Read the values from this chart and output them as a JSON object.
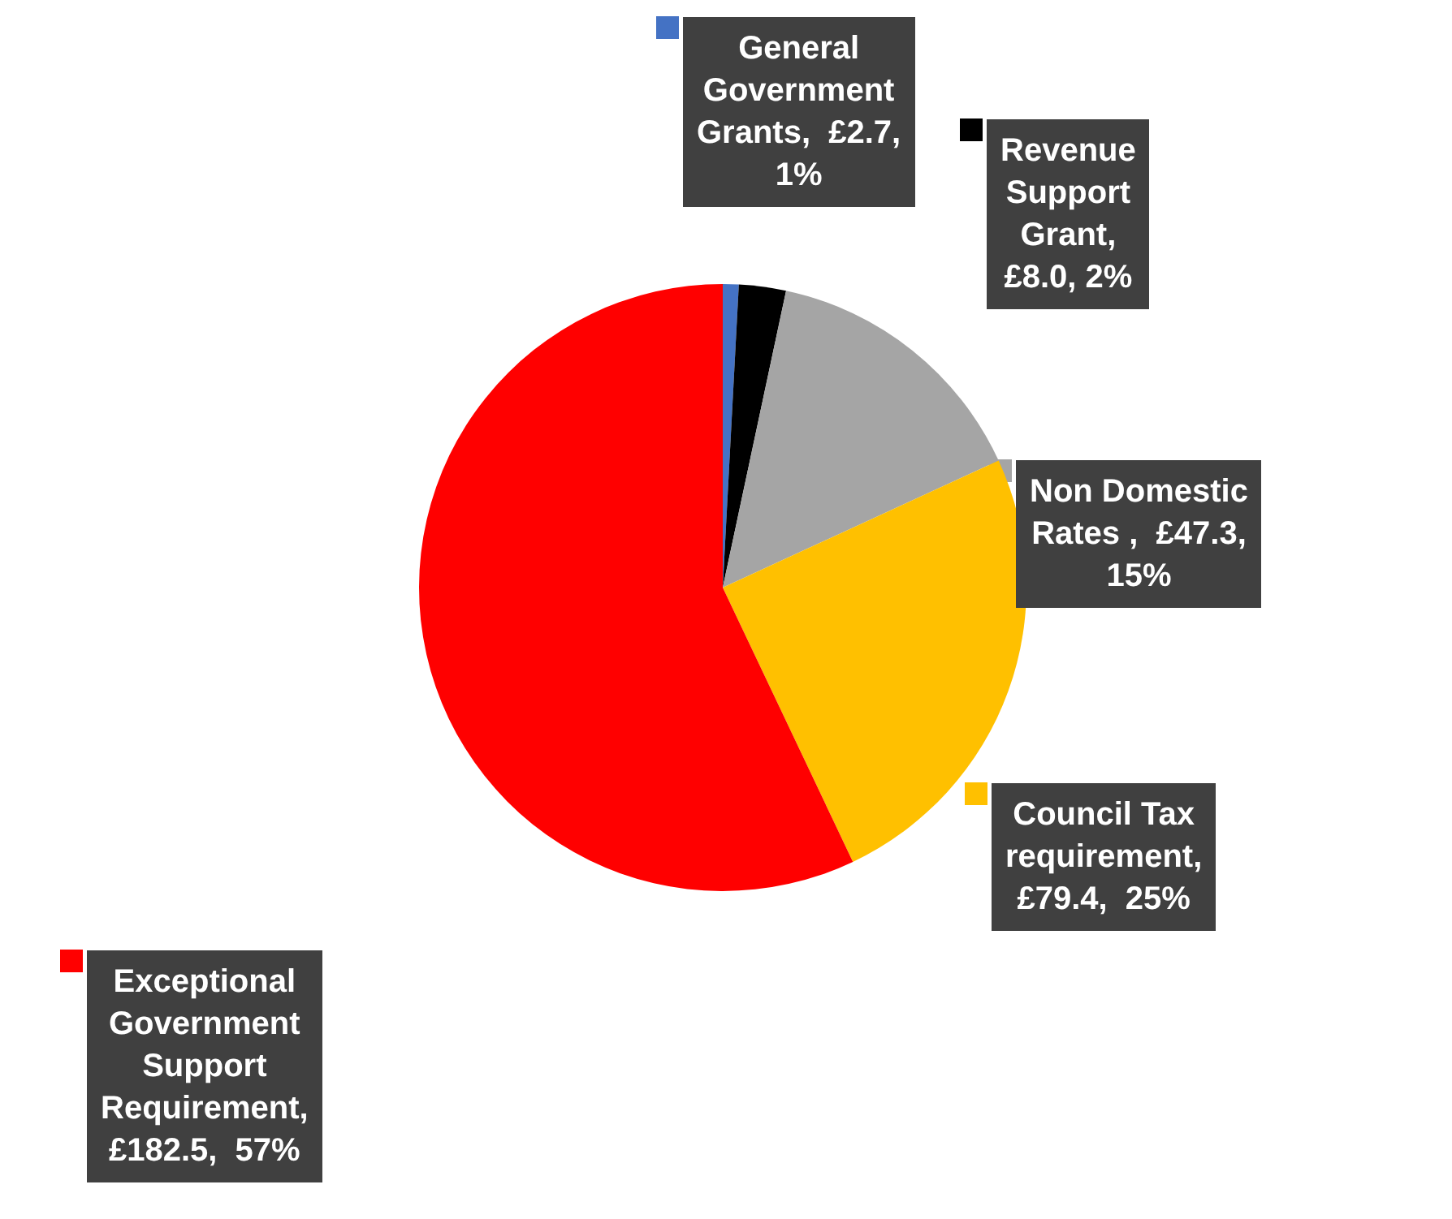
{
  "chart_data": {
    "type": "pie",
    "categories": [
      "General Government Grants,  £2.7, 1%",
      "Revenue Support Grant,  £8.0, 2%",
      "Non Domestic Rates ,  £47.3, 15%",
      "Council Tax requirement,  £79.4,  25%",
      "Exceptional Government Support Requirement,  £182.5,  57%"
    ],
    "values": [
      2.7,
      8.0,
      47.3,
      79.4,
      182.5
    ],
    "colors": [
      "#4472c4",
      "#000000",
      "#a5a5a5",
      "#ffc000",
      "#ff0000"
    ],
    "legend": "bottom left"
  }
}
